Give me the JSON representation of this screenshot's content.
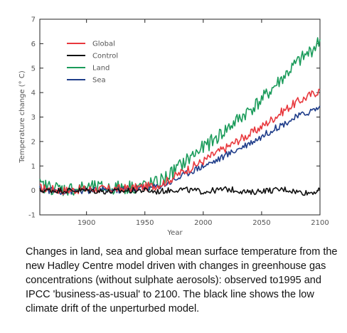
{
  "chart_data": {
    "type": "line",
    "title": "",
    "xlabel": "Year",
    "ylabel": "Temperature change (° C)",
    "xlim": [
      1860,
      2100
    ],
    "ylim": [
      -1,
      7
    ],
    "x_ticks": [
      1900,
      1950,
      2000,
      2050,
      2100
    ],
    "x_tick_labels": [
      "1900",
      "1950",
      "2000",
      "2050",
      "2100"
    ],
    "y_ticks": [
      -1,
      0,
      1,
      2,
      3,
      4,
      5,
      6,
      7
    ],
    "y_tick_labels": [
      "-1",
      "0",
      "1",
      "2",
      "3",
      "4",
      "5",
      "6",
      "7"
    ],
    "legend_position": "top-left",
    "x": [
      1860,
      1880,
      1900,
      1920,
      1940,
      1950,
      1960,
      1970,
      1980,
      1990,
      2000,
      2010,
      2020,
      2030,
      2040,
      2050,
      2060,
      2070,
      2080,
      2090,
      2100
    ],
    "series": [
      {
        "name": "Global",
        "color": "#e8383d",
        "values": [
          0.1,
          0.0,
          0.05,
          0.05,
          0.1,
          0.15,
          0.2,
          0.4,
          0.7,
          0.95,
          1.2,
          1.5,
          1.75,
          2.05,
          2.3,
          2.6,
          2.95,
          3.3,
          3.6,
          3.85,
          4.1
        ]
      },
      {
        "name": "Control",
        "color": "#111111",
        "values": [
          0.0,
          0.0,
          0.0,
          -0.05,
          0.0,
          0.0,
          -0.05,
          0.0,
          0.05,
          0.0,
          -0.05,
          0.0,
          0.05,
          0.0,
          -0.1,
          0.0,
          0.0,
          0.05,
          -0.05,
          -0.1,
          0.0
        ]
      },
      {
        "name": "Land",
        "color": "#1a9b5a",
        "values": [
          0.2,
          0.05,
          0.1,
          0.1,
          0.15,
          0.2,
          0.3,
          0.6,
          1.0,
          1.4,
          1.75,
          2.1,
          2.5,
          2.9,
          3.3,
          3.7,
          4.2,
          4.7,
          5.2,
          5.6,
          6.1
        ]
      },
      {
        "name": "Sea",
        "color": "#1f3d8a",
        "values": [
          0.05,
          -0.05,
          0.0,
          0.0,
          0.05,
          0.1,
          0.15,
          0.3,
          0.55,
          0.8,
          1.0,
          1.2,
          1.45,
          1.7,
          1.95,
          2.2,
          2.5,
          2.75,
          3.0,
          3.2,
          3.4
        ]
      }
    ],
    "grid": false
  },
  "caption": "Changes in land, sea and global mean surface temperature from the new Hadley Centre model driven with changes in greenhouse gas concentrations (without sulphate aerosols): observed to1995 and IPCC 'business-as-usual' to 2100. The black line shows the low climate drift of the unperturbed model."
}
